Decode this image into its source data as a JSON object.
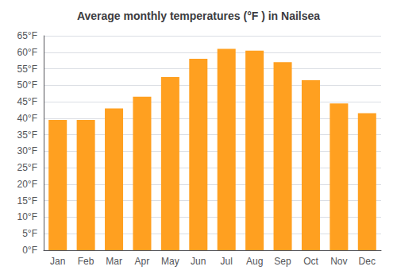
{
  "chart_data": {
    "type": "bar",
    "title": "Average monthly temperatures (°F ) in Nailsea",
    "categories": [
      "Jan",
      "Feb",
      "Mar",
      "Apr",
      "May",
      "Jun",
      "Jul",
      "Aug",
      "Sep",
      "Oct",
      "Nov",
      "Dec"
    ],
    "values": [
      39.5,
      39.5,
      43.0,
      46.5,
      52.5,
      58.0,
      61.0,
      60.5,
      57.0,
      51.5,
      44.5,
      41.5
    ],
    "color": "#FFA020",
    "ylim": [
      0,
      65
    ],
    "yticks": [
      {
        "value": 0,
        "label": "0°F"
      },
      {
        "value": 5,
        "label": "5°F"
      },
      {
        "value": 10,
        "label": "10°F"
      },
      {
        "value": 15,
        "label": "15°F"
      },
      {
        "value": 20,
        "label": "20°F"
      },
      {
        "value": 25,
        "label": "25°F"
      },
      {
        "value": 30,
        "label": "30°F"
      },
      {
        "value": 35,
        "label": "35°F"
      },
      {
        "value": 40,
        "label": "40°F"
      },
      {
        "value": 45,
        "label": "45°F"
      },
      {
        "value": 50,
        "label": "50°F"
      },
      {
        "value": 55,
        "label": "55°F"
      },
      {
        "value": 60,
        "label": "60°F"
      },
      {
        "value": 65,
        "label": "65°F"
      }
    ],
    "grid": true
  }
}
